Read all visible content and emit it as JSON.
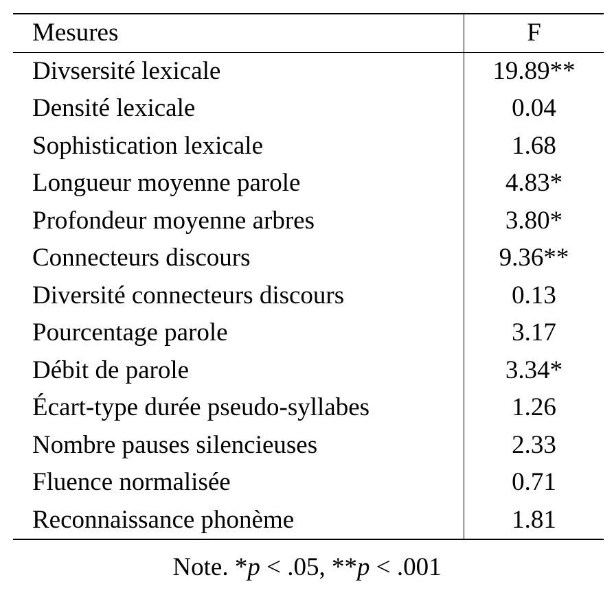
{
  "table": {
    "headers": [
      "Mesures",
      "F"
    ],
    "rows": [
      {
        "measure": "Divsersité lexicale",
        "f": "19.89**"
      },
      {
        "measure": "Densité lexicale",
        "f": "0.04"
      },
      {
        "measure": "Sophistication lexicale",
        "f": "1.68"
      },
      {
        "measure": "Longueur moyenne parole",
        "f": "4.83*"
      },
      {
        "measure": "Profondeur moyenne arbres",
        "f": "3.80*"
      },
      {
        "measure": "Connecteurs discours",
        "f": "9.36**"
      },
      {
        "measure": "Diversité connecteurs discours",
        "f": "0.13"
      },
      {
        "measure": "Pourcentage parole",
        "f": "3.17"
      },
      {
        "measure": "Débit de parole",
        "f": "3.34*"
      },
      {
        "measure": "Écart-type durée pseudo-syllabes",
        "f": "1.26"
      },
      {
        "measure": "Nombre pauses silencieuses",
        "f": "2.33"
      },
      {
        "measure": "Fluence normalisée",
        "f": "0.71"
      },
      {
        "measure": "Reconnaissance phonème",
        "f": "1.81"
      }
    ]
  },
  "note": {
    "prefix": "Note. *",
    "p1": "p",
    "t1": " < .05, **",
    "p2": "p",
    "t2": " < .001"
  }
}
